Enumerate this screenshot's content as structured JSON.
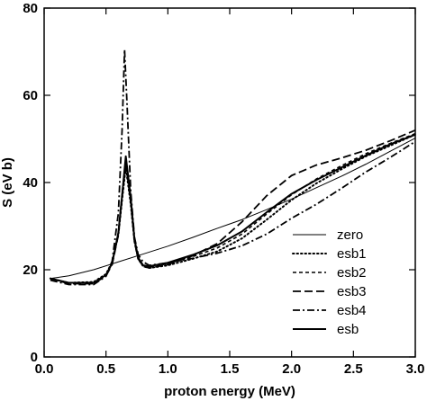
{
  "chart_data": {
    "type": "line",
    "title": "",
    "xlabel": "proton energy (MeV)",
    "ylabel": "S (eV b)",
    "xlim": [
      0.0,
      3.0
    ],
    "ylim": [
      0,
      80
    ],
    "xticks": [
      0.0,
      0.5,
      1.0,
      1.5,
      2.0,
      2.5,
      3.0
    ],
    "xtick_labels": [
      "0.0",
      "0.5",
      "1.0",
      "1.5",
      "2.0",
      "2.5",
      "3.0"
    ],
    "yticks": [
      0,
      20,
      40,
      60,
      80
    ],
    "ytick_labels": [
      "0",
      "20",
      "40",
      "60",
      "80"
    ],
    "grid": false,
    "legend_position": "bottom-right",
    "series": [
      {
        "name": "zero",
        "dash": "solid-thin",
        "x": [
          0.05,
          0.2,
          0.4,
          0.6,
          0.8,
          1.0,
          1.2,
          1.4,
          1.6,
          1.8,
          2.0,
          2.2,
          2.4,
          2.6,
          2.8,
          3.0
        ],
        "y": [
          18.0,
          18.6,
          20.0,
          21.8,
          23.6,
          25.4,
          27.4,
          29.5,
          31.5,
          33.8,
          36.2,
          38.8,
          41.4,
          44.2,
          47.2,
          50.2
        ]
      },
      {
        "name": "esb1",
        "dash": "dotted",
        "x": [
          0.05,
          0.2,
          0.4,
          0.5,
          0.55,
          0.6,
          0.63,
          0.66,
          0.7,
          0.73,
          0.76,
          0.8,
          0.85,
          1.0,
          1.2,
          1.4,
          1.6,
          1.8,
          2.0,
          2.2,
          2.4,
          2.6,
          2.8,
          3.0
        ],
        "y": [
          18.0,
          17.0,
          17.2,
          19.0,
          21.8,
          28.0,
          36.0,
          43.5,
          35.0,
          26.5,
          22.5,
          20.8,
          20.4,
          21.0,
          22.5,
          24.2,
          27.2,
          31.5,
          36.0,
          39.8,
          43.0,
          46.0,
          48.5,
          51.0
        ]
      },
      {
        "name": "esb2",
        "dash": "short-dash",
        "x": [
          0.05,
          0.2,
          0.4,
          0.5,
          0.55,
          0.6,
          0.63,
          0.66,
          0.7,
          0.73,
          0.76,
          0.8,
          0.85,
          1.0,
          1.2,
          1.4,
          1.6,
          1.8,
          2.0,
          2.2,
          2.4,
          2.6,
          2.8,
          3.0
        ],
        "y": [
          18.0,
          17.0,
          17.0,
          18.8,
          21.5,
          28.5,
          37.5,
          45.0,
          36.0,
          27.0,
          22.8,
          21.0,
          20.6,
          21.4,
          23.0,
          25.0,
          28.2,
          32.8,
          37.2,
          40.8,
          43.8,
          46.6,
          49.0,
          51.2
        ]
      },
      {
        "name": "esb3",
        "dash": "long-dash",
        "x": [
          0.05,
          0.2,
          0.4,
          0.5,
          0.55,
          0.6,
          0.63,
          0.66,
          0.7,
          0.73,
          0.76,
          0.8,
          0.85,
          1.0,
          1.2,
          1.4,
          1.6,
          1.8,
          2.0,
          2.2,
          2.4,
          2.6,
          2.8,
          3.0
        ],
        "y": [
          18.0,
          16.8,
          16.8,
          18.6,
          21.2,
          28.0,
          36.5,
          44.5,
          35.5,
          26.5,
          22.5,
          20.8,
          20.4,
          21.2,
          23.2,
          26.0,
          31.0,
          37.0,
          41.6,
          44.0,
          45.6,
          47.4,
          49.6,
          52.0
        ]
      },
      {
        "name": "esb4",
        "dash": "dash-dot",
        "x": [
          0.05,
          0.2,
          0.4,
          0.5,
          0.55,
          0.6,
          0.63,
          0.65,
          0.67,
          0.7,
          0.73,
          0.76,
          0.8,
          0.85,
          1.0,
          1.2,
          1.4,
          1.6,
          1.8,
          2.0,
          2.2,
          2.4,
          2.6,
          2.8,
          3.0
        ],
        "y": [
          17.6,
          16.6,
          16.6,
          18.5,
          22.0,
          33.0,
          52.0,
          70.5,
          58.0,
          38.0,
          27.5,
          23.5,
          21.8,
          21.0,
          21.6,
          22.6,
          23.8,
          25.5,
          28.2,
          31.8,
          35.0,
          38.6,
          42.4,
          45.8,
          49.4
        ]
      },
      {
        "name": "esb",
        "dash": "solid-thick",
        "x": [
          0.05,
          0.2,
          0.4,
          0.5,
          0.55,
          0.6,
          0.63,
          0.66,
          0.7,
          0.73,
          0.76,
          0.8,
          0.85,
          1.0,
          1.2,
          1.4,
          1.6,
          1.8,
          2.0,
          2.2,
          2.4,
          2.6,
          2.8,
          3.0
        ],
        "y": [
          18.0,
          17.0,
          17.0,
          18.8,
          21.5,
          28.5,
          37.0,
          46.0,
          36.5,
          27.0,
          22.8,
          21.0,
          20.8,
          21.6,
          23.4,
          25.6,
          28.8,
          33.2,
          37.4,
          40.6,
          43.4,
          46.2,
          48.8,
          51.0
        ]
      }
    ]
  }
}
